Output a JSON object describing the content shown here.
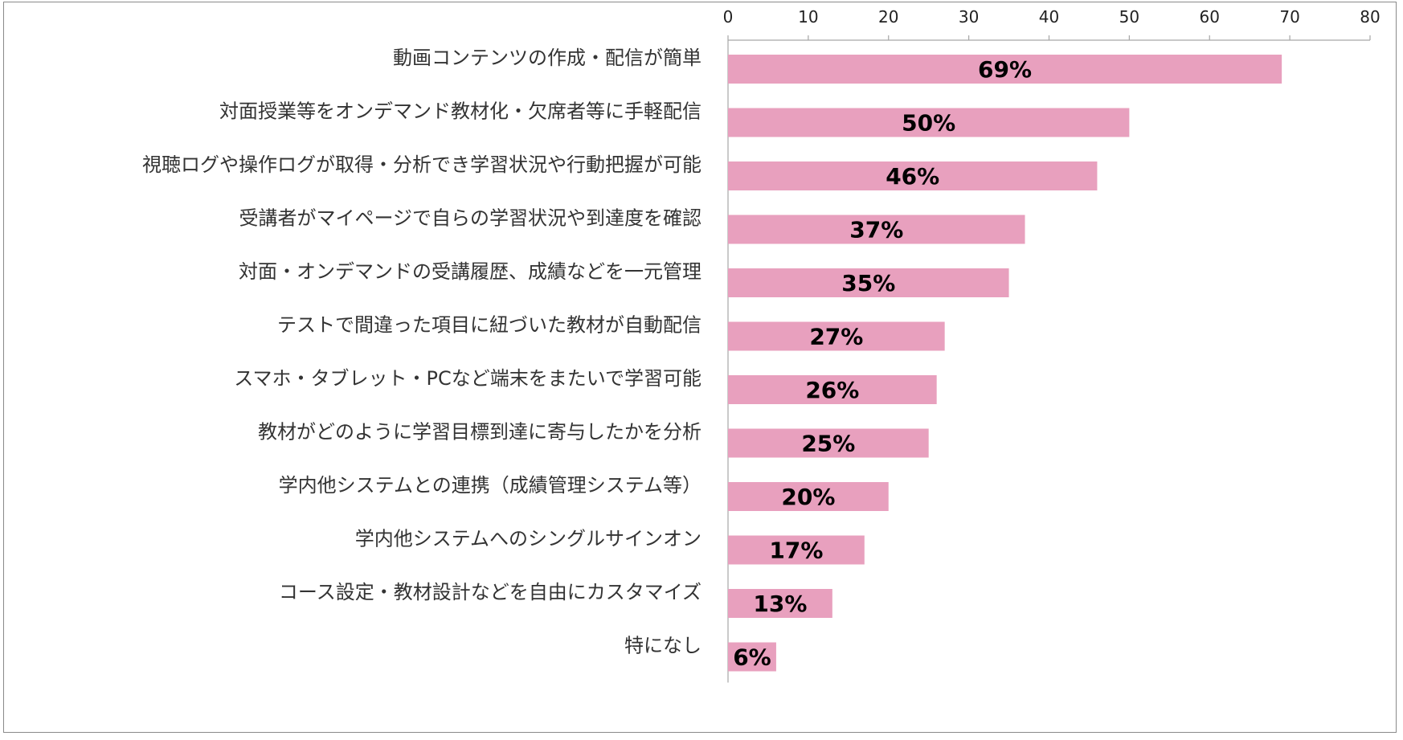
{
  "chart_data": {
    "type": "bar",
    "orientation": "horizontal",
    "title": "",
    "xlabel": "",
    "ylabel": "",
    "xlim": [
      0,
      80
    ],
    "ticks": [
      0,
      10,
      20,
      30,
      40,
      50,
      60,
      70,
      80
    ],
    "axis_position": "top",
    "grid": false,
    "legend": "none",
    "bar_color": "#e8a0be",
    "categories": [
      "動画コンテンツの作成・配信が簡単",
      "対面授業等をオンデマンド教材化・欠席者等に手軽配信",
      "視聴ログや操作ログが取得・分析でき学習状況や行動把握が可能",
      "受講者がマイページで自らの学習状況や到達度を確認",
      "対面・オンデマンドの受講履歴、成績などを一元管理",
      "テストで間違った項目に紐づいた教材が自動配信",
      "スマホ・タブレット・PCなど端末をまたいで学習可能",
      "教材がどのように学習目標到達に寄与したかを分析",
      "学内他システムとの連携（成績管理システム等）",
      "学内他システムへのシングルサインオン",
      "コース設定・教材設計などを自由にカスタマイズ",
      "特になし"
    ],
    "values": [
      69,
      50,
      46,
      37,
      35,
      27,
      26,
      25,
      20,
      17,
      13,
      6
    ],
    "data_labels": [
      "69%",
      "50%",
      "46%",
      "37%",
      "35%",
      "27%",
      "26%",
      "25%",
      "20%",
      "17%",
      "13%",
      "6%"
    ]
  }
}
